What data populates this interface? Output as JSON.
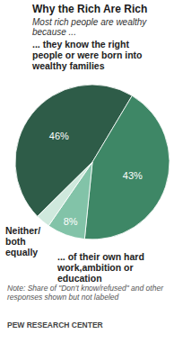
{
  "chart_data": {
    "type": "pie",
    "title": "Why the Rich Are Rich",
    "subtitle": "Most rich people are wealthy because ...",
    "categories": [
      "... they know the right people or were born into wealthy families",
      "... of their own hard work,ambition or education",
      "Neither/ both equally",
      null
    ],
    "values": [
      46,
      43,
      8,
      3
    ],
    "value_labels": [
      "46%",
      "43%",
      "8%",
      null
    ],
    "colors": [
      "#2e5c48",
      "#3e8766",
      "#82c3a8",
      "#cfe9dd"
    ],
    "data_labels": true,
    "note": "Note: Share of \"Don't know/refused\" and other responses shown but not labeled",
    "source": "PEW RESEARCH CENTER"
  }
}
